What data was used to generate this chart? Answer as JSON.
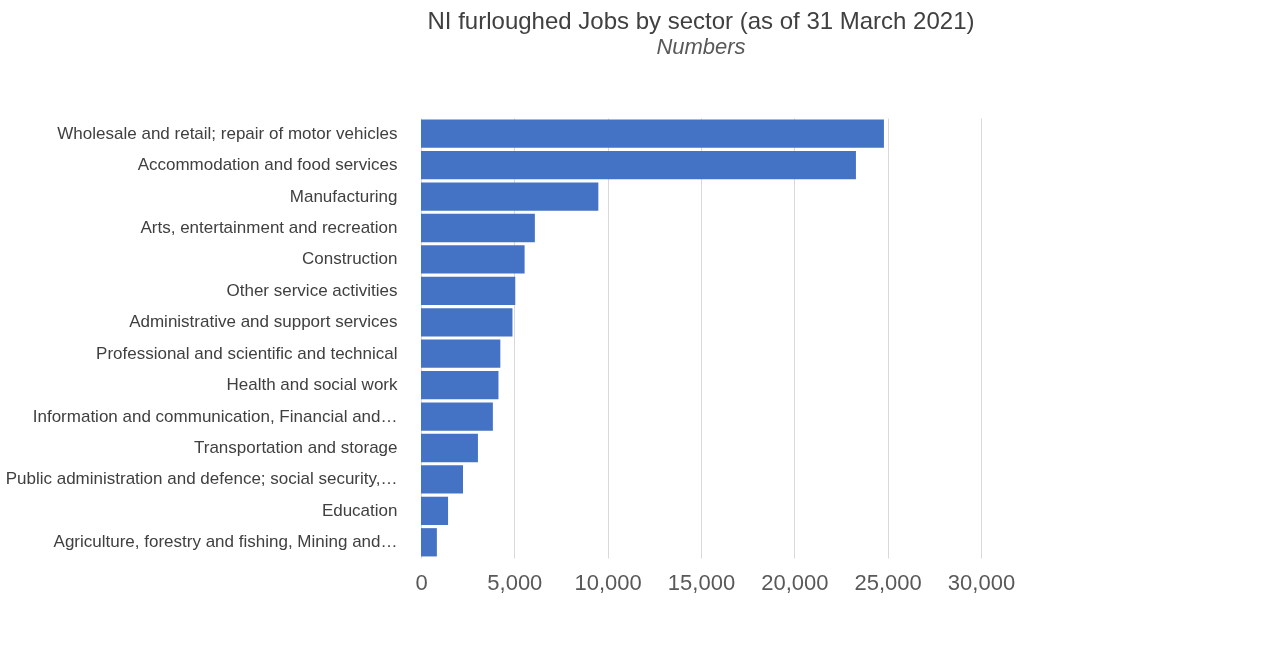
{
  "chart_data": {
    "type": "bar",
    "orientation": "horizontal",
    "title": "NI furloughed Jobs by sector (as of 31 March 2021)",
    "subtitle": "Numbers",
    "categories": [
      "Wholesale and retail; repair of motor vehicles",
      "Accommodation and food services",
      "Manufacturing",
      "Arts, entertainment and recreation",
      "Construction",
      "Other service activities",
      "Administrative and support services",
      "Professional and scientific and technical",
      "Health and social work",
      "Information and communication, Financial and…",
      "Transportation and storage",
      "Public administration and defence; social security,…",
      "Education",
      "Agriculture, forestry and fishing, Mining and…"
    ],
    "values": [
      24800,
      23300,
      9500,
      6100,
      5550,
      5050,
      4900,
      4250,
      4150,
      3850,
      3050,
      2250,
      1450,
      850
    ],
    "color": "#4472c4",
    "xlim": [
      0,
      30000
    ],
    "xticks": [
      {
        "value": 0,
        "label": "0"
      },
      {
        "value": 5000,
        "label": "5,000"
      },
      {
        "value": 10000,
        "label": "10,000"
      },
      {
        "value": 15000,
        "label": "15,000"
      },
      {
        "value": 20000,
        "label": "20,000"
      },
      {
        "value": 25000,
        "label": "25,000"
      },
      {
        "value": 30000,
        "label": "30,000"
      }
    ],
    "grid": "x"
  }
}
